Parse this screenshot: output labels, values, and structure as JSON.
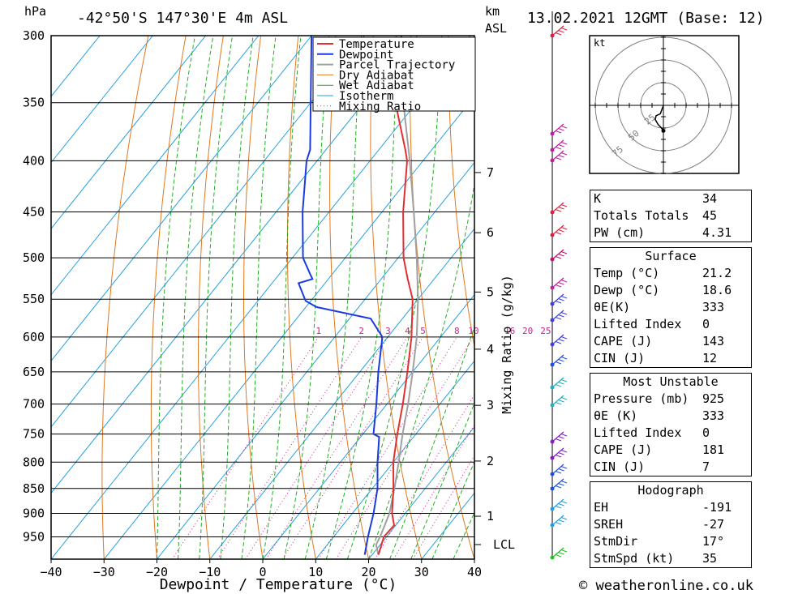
{
  "header": {
    "pressure_unit": "hPa",
    "location": "-42°50'S  147°30'E  4m  ASL",
    "height_unit": "km",
    "height_unit2": "ASL",
    "datetime": "13.02.2021  12GMT  (Base: 12)"
  },
  "credit": "© weatheronline.co.uk",
  "hodograph": {
    "unit": "kt",
    "ring_labels": [
      "25",
      "50",
      "75"
    ],
    "trace_speeds_kt": [
      0,
      10,
      14,
      18,
      22,
      25,
      28
    ],
    "trace_dirs_deg": [
      0,
      20,
      35,
      30,
      15,
      5,
      0
    ]
  },
  "indices": {
    "rows": [
      {
        "label": "K",
        "value": "34"
      },
      {
        "label": "Totals Totals",
        "value": "45"
      },
      {
        "label": "PW (cm)",
        "value": "4.31"
      }
    ]
  },
  "surface": {
    "title": "Surface",
    "rows": [
      {
        "label": "Temp (°C)",
        "value": "21.2"
      },
      {
        "label": "Dewp (°C)",
        "value": "18.6"
      },
      {
        "label": "θE(K)",
        "value": "333"
      },
      {
        "label": "Lifted Index",
        "value": "0"
      },
      {
        "label": "CAPE (J)",
        "value": "143"
      },
      {
        "label": "CIN (J)",
        "value": "12"
      }
    ]
  },
  "most_unstable": {
    "title": "Most Unstable",
    "rows": [
      {
        "label": "Pressure (mb)",
        "value": "925"
      },
      {
        "label": "θE (K)",
        "value": "333"
      },
      {
        "label": "Lifted Index",
        "value": "0"
      },
      {
        "label": "CAPE (J)",
        "value": "181"
      },
      {
        "label": "CIN (J)",
        "value": "7"
      }
    ]
  },
  "hodo_stats": {
    "title": "Hodograph",
    "rows": [
      {
        "label": "EH",
        "value": "-191"
      },
      {
        "label": "SREH",
        "value": "-27"
      },
      {
        "label": "StmDir",
        "value": "17°"
      },
      {
        "label": "StmSpd (kt)",
        "value": "35"
      }
    ]
  },
  "colors": {
    "temperature": "#e03030",
    "dewpoint": "#1a3be0",
    "parcel": "#a0a0a0",
    "dry_adiabat": "#e07820",
    "wet_adiabat": "#20b020",
    "isotherm": "#20a0e0",
    "mixing_ratio": "#d0208f"
  },
  "chart_data": {
    "type": "line",
    "title": "",
    "xlabel": "Dewpoint / Temperature (°C)",
    "ylabel": "hPa",
    "right_label": "Mixing Ratio (g/kg)",
    "xlim": [
      -40,
      40
    ],
    "ylim": [
      1000,
      300
    ],
    "x_ticks": [
      -40,
      -30,
      -20,
      -10,
      0,
      10,
      20,
      30,
      40
    ],
    "x_tick_labels": [
      "−40",
      "−30",
      "−20",
      "−10",
      "0",
      "10",
      "20",
      "30",
      "40"
    ],
    "pressure_levels": [
      300,
      350,
      400,
      450,
      500,
      550,
      600,
      650,
      700,
      750,
      800,
      850,
      900,
      950
    ],
    "km_ticks": [
      {
        "km": "1",
        "p": 906
      },
      {
        "km": "2",
        "p": 798
      },
      {
        "km": "3",
        "p": 702
      },
      {
        "km": "4",
        "p": 617
      },
      {
        "km": "5",
        "p": 541
      },
      {
        "km": "6",
        "p": 472
      },
      {
        "km": "7",
        "p": 411
      }
    ],
    "lcl": {
      "label": "LCL",
      "p": 967
    },
    "mixing_ratio_labels": [
      "1",
      "2",
      "3",
      "4",
      "5",
      "8",
      "10",
      "16",
      "20",
      "25"
    ],
    "mixing_ratio_values": [
      1,
      2,
      3,
      4,
      5,
      8,
      10,
      16,
      20,
      25
    ],
    "legend": [
      "Temperature",
      "Dewpoint",
      "Parcel Trajectory",
      "Dry Adiabat",
      "Wet Adiabat",
      "Isotherm",
      "Mixing Ratio"
    ],
    "legend_position": "top-center",
    "series": [
      {
        "name": "Temperature",
        "p": [
          990,
          950,
          925,
          900,
          850,
          800,
          750,
          700,
          650,
          600,
          550,
          525,
          500,
          450,
          400,
          390,
          350,
          300
        ],
        "t": [
          21.2,
          19.5,
          19.7,
          17.5,
          14.0,
          10.0,
          6.5,
          3.0,
          -1.0,
          -5.5,
          -11.0,
          -15.0,
          -19.0,
          -26.0,
          -33.0,
          -35.0,
          -44.0,
          -53.0
        ]
      },
      {
        "name": "Dewpoint",
        "p": [
          990,
          950,
          900,
          850,
          800,
          755,
          750,
          700,
          650,
          600,
          575,
          560,
          552,
          530,
          525,
          520,
          500,
          450,
          400,
          390,
          350,
          300
        ],
        "t": [
          18.6,
          16.5,
          14.0,
          11.0,
          7.0,
          3.5,
          2.0,
          -2.0,
          -6.5,
          -11.0,
          -16.0,
          -28.0,
          -31.0,
          -35.0,
          -33.0,
          -34.0,
          -38.0,
          -45.0,
          -52.0,
          -53.0,
          -60.0,
          -70.0
        ]
      },
      {
        "name": "Parcel Trajectory",
        "p": [
          990,
          967,
          950,
          900,
          850,
          800,
          750,
          700,
          650,
          600,
          550,
          500,
          450,
          400,
          350,
          300
        ],
        "t": [
          21.2,
          19.2,
          18.8,
          17.0,
          14.2,
          11.0,
          7.5,
          4.0,
          0.0,
          -4.5,
          -10.0,
          -16.5,
          -24.0,
          -32.5,
          -42.5,
          -54.0
        ]
      }
    ]
  }
}
